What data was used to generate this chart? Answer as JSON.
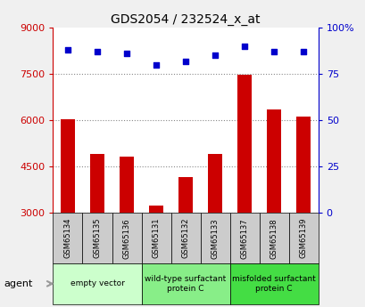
{
  "title": "GDS2054 / 232524_x_at",
  "samples": [
    "GSM65134",
    "GSM65135",
    "GSM65136",
    "GSM65131",
    "GSM65132",
    "GSM65133",
    "GSM65137",
    "GSM65138",
    "GSM65139"
  ],
  "counts": [
    6020,
    4900,
    4820,
    3250,
    4150,
    4900,
    7480,
    6350,
    6120
  ],
  "percentiles": [
    88,
    87,
    86,
    80,
    82,
    85,
    90,
    87,
    87
  ],
  "ylim_left": [
    3000,
    9000
  ],
  "ylim_right": [
    0,
    100
  ],
  "yticks_left": [
    3000,
    4500,
    6000,
    7500,
    9000
  ],
  "ytick_labels_left": [
    "3000",
    "4500",
    "6000",
    "7500",
    "9000"
  ],
  "yticks_right": [
    0,
    25,
    50,
    75,
    100
  ],
  "ytick_labels_right": [
    "0",
    "25",
    "50",
    "75",
    "100%"
  ],
  "groups": [
    {
      "label": "empty vector",
      "start": 0,
      "end": 3,
      "color": "#ccffcc"
    },
    {
      "label": "wild-type surfactant\nprotein C",
      "start": 3,
      "end": 6,
      "color": "#88ee88"
    },
    {
      "label": "misfolded surfactant\nprotein C",
      "start": 6,
      "end": 9,
      "color": "#44dd44"
    }
  ],
  "bar_color": "#cc0000",
  "dot_color": "#0000cc",
  "grid_color": "#888888",
  "bg_color": "#f0f0f0",
  "plot_bg": "#ffffff",
  "tick_color_left": "#cc0000",
  "tick_color_right": "#0000cc",
  "bar_width": 0.5,
  "sample_box_color": "#cccccc",
  "agent_arrow_color": "#999999"
}
